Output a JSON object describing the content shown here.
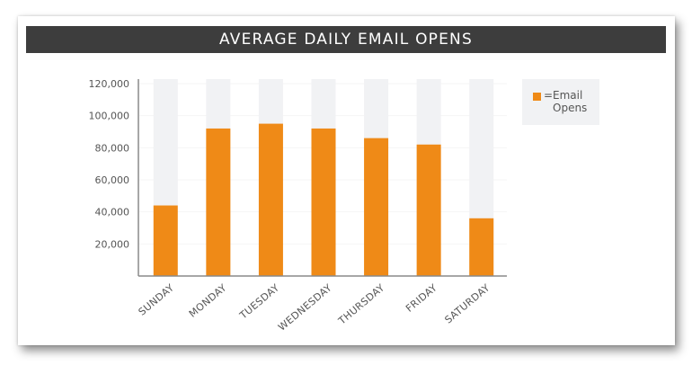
{
  "chart_data": {
    "type": "bar",
    "title": "AVERAGE DAILY EMAIL OPENS",
    "xlabel": "",
    "ylabel": "",
    "categories": [
      "SUNDAY",
      "MONDAY",
      "TUESDAY",
      "WEDNESDAY",
      "THURSDAY",
      "FRIDAY",
      "SATURDAY"
    ],
    "series": [
      {
        "name": "Email Opens",
        "values": [
          44000,
          92000,
          95000,
          92000,
          86000,
          82000,
          36000
        ]
      }
    ],
    "yticks": [
      20000,
      40000,
      60000,
      80000,
      100000,
      120000
    ],
    "ytick_labels": [
      "20,000",
      "40,000",
      "60,000",
      "80,000",
      "100,000",
      "120,000"
    ],
    "ylim": [
      0,
      120000
    ],
    "legend": {
      "position": "right",
      "prefix": "=",
      "label": "Email Opens"
    },
    "colors": {
      "bar": "#ef8a17",
      "bar_background": "#f1f2f4",
      "title_bar": "#3d3d3d"
    },
    "grid": false
  }
}
